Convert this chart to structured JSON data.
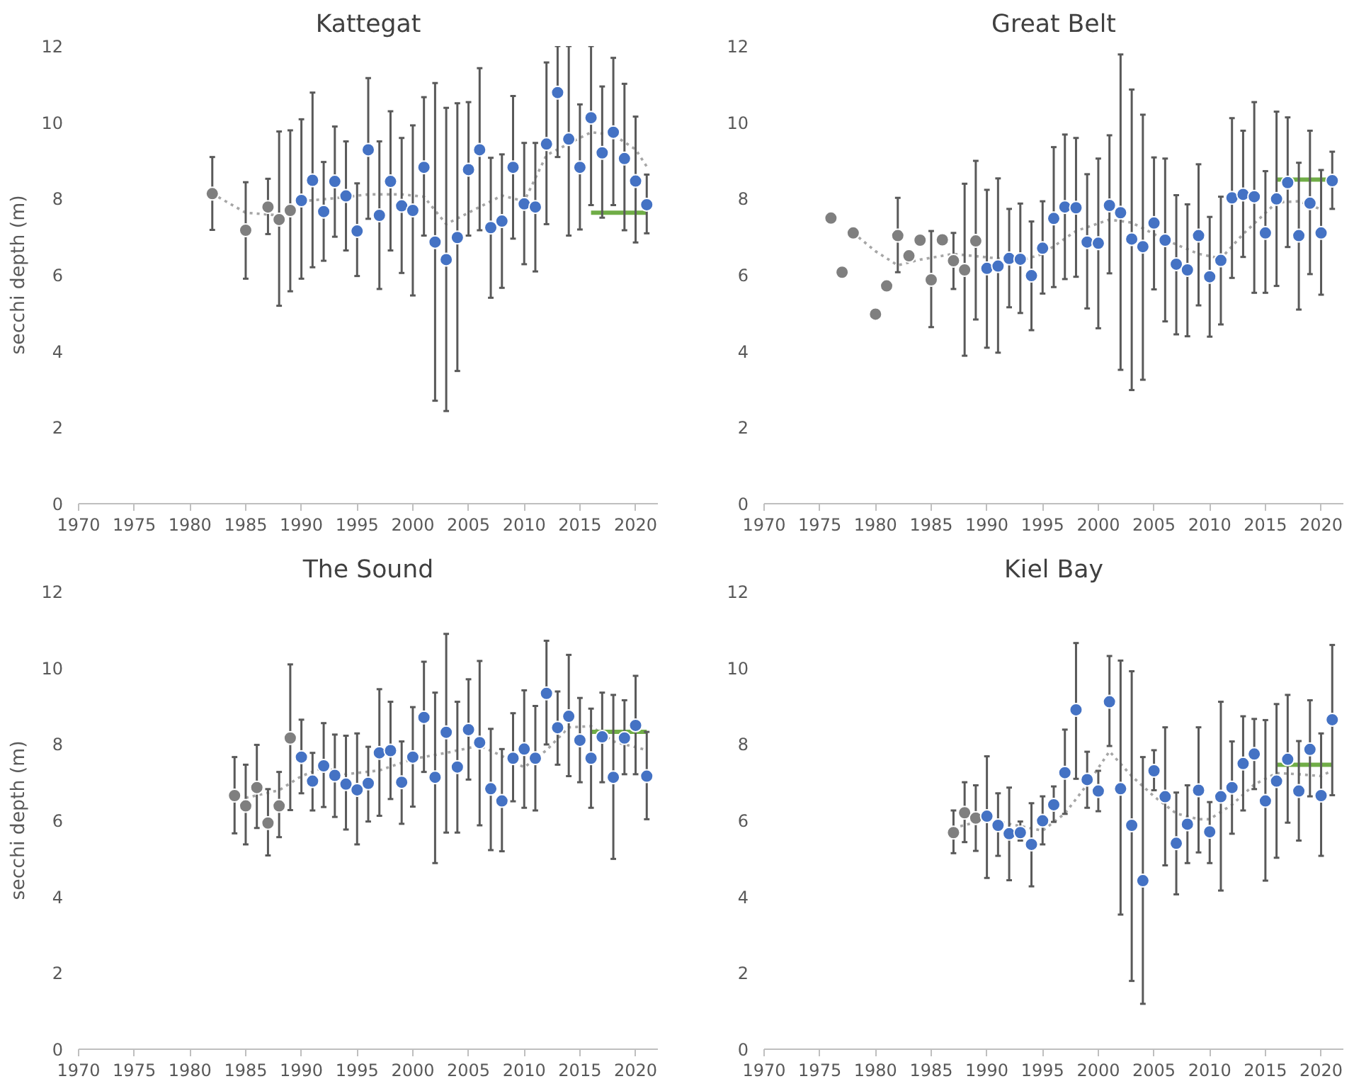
{
  "chart_data": [
    {
      "type": "scatter",
      "title": "Kattegat",
      "ylabel": "secchi depth (m)",
      "xlim": [
        1970,
        2022
      ],
      "xticks": [
        1970,
        1975,
        1980,
        1985,
        1990,
        1995,
        2000,
        2005,
        2010,
        2015,
        2020
      ],
      "ylim": [
        0,
        12
      ],
      "yticks": [
        0,
        2,
        4,
        6,
        8,
        10,
        12
      ],
      "marker": "circle",
      "series": [
        {
          "color": "#7f7f7f",
          "x": [
            1982,
            1985,
            1987,
            1988,
            1989
          ],
          "values": [
            8.13,
            7.17,
            7.78,
            7.45,
            7.69
          ],
          "errors": [
            [
              7.18,
              9.09
            ],
            [
              5.9,
              8.43
            ],
            [
              7.07,
              8.52
            ],
            [
              5.19,
              9.76
            ],
            [
              5.57,
              9.79
            ]
          ]
        },
        {
          "color": "#4472c4",
          "x": [
            1990,
            1991,
            1992,
            1993,
            1994,
            1995,
            1996,
            1997,
            1998,
            1999,
            2000,
            2001,
            2002,
            2003,
            2004,
            2005,
            2006,
            2007,
            2008,
            2009,
            2010,
            2011,
            2012,
            2013,
            2014,
            2015,
            2016,
            2017,
            2018,
            2019,
            2020,
            2021
          ],
          "values": [
            7.95,
            8.48,
            7.66,
            8.45,
            8.07,
            7.15,
            9.28,
            7.56,
            8.45,
            7.81,
            7.69,
            8.82,
            6.86,
            6.4,
            6.98,
            8.76,
            9.28,
            7.24,
            7.41,
            8.82,
            7.86,
            7.78,
            9.43,
            10.78,
            9.56,
            8.82,
            10.12,
            9.2,
            9.74,
            9.05,
            8.46,
            7.84
          ],
          "errors": [
            [
              5.9,
              10.08
            ],
            [
              6.2,
              10.78
            ],
            [
              6.37,
              8.96
            ],
            [
              7.0,
              9.89
            ],
            [
              6.64,
              9.5
            ],
            [
              5.97,
              8.4
            ],
            [
              7.47,
              11.16
            ],
            [
              5.63,
              9.5
            ],
            [
              6.64,
              10.29
            ],
            [
              6.05,
              9.59
            ],
            [
              5.46,
              9.92
            ],
            [
              7.03,
              10.66
            ],
            [
              2.7,
              11.03
            ],
            [
              2.43,
              10.38
            ],
            [
              3.48,
              10.5
            ],
            [
              7.03,
              10.53
            ],
            [
              7.17,
              11.42
            ],
            [
              5.4,
              9.07
            ],
            [
              5.66,
              9.16
            ],
            [
              6.95,
              10.69
            ],
            [
              6.28,
              9.46
            ],
            [
              6.09,
              9.46
            ],
            [
              7.33,
              11.57
            ],
            [
              9.09,
              12
            ],
            [
              7.03,
              12
            ],
            [
              7.19,
              10.47
            ],
            [
              7.83,
              12
            ],
            [
              7.5,
              10.94
            ],
            [
              7.83,
              11.69
            ],
            [
              7.17,
              11.01
            ],
            [
              6.85,
              10.15
            ],
            [
              7.09,
              8.63
            ]
          ]
        },
        {
          "type": "line",
          "color": "#a6a6a6",
          "line_style": "dotted",
          "marker": "none",
          "x": [
            1982,
            1985,
            1988,
            1990,
            1993,
            1996,
            1999,
            2001,
            2003,
            2005,
            2008,
            2010,
            2012,
            2014,
            2016,
            2018,
            2020,
            2021
          ],
          "values": [
            8.13,
            7.63,
            7.56,
            7.93,
            8.01,
            8.11,
            8.11,
            8.05,
            7.33,
            7.63,
            8.08,
            7.93,
            9.14,
            9.44,
            9.74,
            9.67,
            9.29,
            8.84
          ]
        },
        {
          "type": "line",
          "color": "#70ad47",
          "line_style": "solid",
          "marker": "none",
          "x": [
            2016,
            2021
          ],
          "values": [
            7.63,
            7.63
          ]
        }
      ]
    },
    {
      "type": "scatter",
      "title": "Great Belt",
      "xlim": [
        1970,
        2022
      ],
      "xticks": [
        1970,
        1975,
        1980,
        1985,
        1990,
        1995,
        2000,
        2005,
        2010,
        2015,
        2020
      ],
      "ylim": [
        0,
        12
      ],
      "yticks": [
        0,
        2,
        4,
        6,
        8,
        10,
        12
      ],
      "marker": "circle",
      "series": [
        {
          "color": "#7f7f7f",
          "x": [
            1976,
            1977,
            1978,
            1980,
            1981,
            1982,
            1983,
            1984,
            1985,
            1986,
            1987,
            1988,
            1989
          ],
          "values": [
            7.49,
            6.07,
            7.1,
            4.97,
            5.71,
            7.03,
            6.5,
            6.91,
            5.87,
            6.92,
            6.37,
            6.13,
            6.89
          ],
          "errors": [
            null,
            null,
            null,
            null,
            null,
            [
              6.07,
              8.02
            ],
            null,
            null,
            [
              4.63,
              7.15
            ],
            null,
            [
              5.63,
              7.1
            ],
            [
              3.88,
              8.39
            ],
            [
              4.83,
              8.99
            ]
          ]
        },
        {
          "color": "#4472c4",
          "x": [
            1990,
            1991,
            1992,
            1993,
            1994,
            1995,
            1996,
            1997,
            1998,
            1999,
            2000,
            2001,
            2002,
            2003,
            2004,
            2005,
            2006,
            2007,
            2008,
            2009,
            2010,
            2011,
            2012,
            2013,
            2014,
            2015,
            2016,
            2017,
            2018,
            2019,
            2020,
            2021
          ],
          "values": [
            6.17,
            6.23,
            6.43,
            6.41,
            5.98,
            6.7,
            7.48,
            7.78,
            7.76,
            6.86,
            6.83,
            7.82,
            7.63,
            6.94,
            6.74,
            7.36,
            6.91,
            6.28,
            6.13,
            7.03,
            5.95,
            6.38,
            8.02,
            8.11,
            8.05,
            7.1,
            7.99,
            8.42,
            7.03,
            7.88,
            7.1,
            8.47
          ],
          "errors": [
            [
              4.09,
              8.23
            ],
            [
              3.96,
              8.53
            ],
            [
              5.15,
              7.73
            ],
            [
              5.0,
              7.87
            ],
            [
              4.55,
              7.4
            ],
            [
              5.51,
              7.93
            ],
            [
              5.68,
              9.35
            ],
            [
              5.89,
              9.68
            ],
            [
              5.95,
              9.59
            ],
            [
              5.12,
              8.64
            ],
            [
              4.6,
              9.05
            ],
            [
              6.04,
              9.66
            ],
            [
              3.51,
              11.78
            ],
            [
              2.98,
              10.86
            ],
            [
              3.25,
              10.2
            ],
            [
              5.62,
              9.08
            ],
            [
              4.78,
              9.05
            ],
            [
              4.44,
              8.09
            ],
            [
              4.39,
              7.85
            ],
            [
              5.2,
              8.9
            ],
            [
              4.38,
              7.52
            ],
            [
              4.7,
              8.05
            ],
            [
              5.92,
              10.11
            ],
            [
              6.47,
              9.78
            ],
            [
              5.53,
              10.53
            ],
            [
              5.53,
              8.72
            ],
            [
              5.71,
              10.28
            ],
            [
              6.73,
              10.13
            ],
            [
              5.09,
              8.94
            ],
            [
              6.02,
              9.78
            ],
            [
              5.48,
              8.75
            ],
            [
              7.73,
              9.23
            ]
          ]
        },
        {
          "type": "line",
          "color": "#a6a6a6",
          "line_style": "dotted",
          "marker": "none",
          "x": [
            1978,
            1980,
            1982,
            1984,
            1987,
            1990,
            1993,
            1995,
            1998,
            2001,
            2003,
            2006,
            2009,
            2011,
            2013,
            2016,
            2018,
            2020
          ],
          "values": [
            7.1,
            6.62,
            6.25,
            6.4,
            6.55,
            6.46,
            6.37,
            6.55,
            7.15,
            7.45,
            7.37,
            6.92,
            6.55,
            6.43,
            7.07,
            7.9,
            7.93,
            7.72
          ]
        },
        {
          "type": "line",
          "color": "#70ad47",
          "line_style": "solid",
          "marker": "none",
          "x": [
            2016,
            2021
          ],
          "values": [
            8.5,
            8.5
          ]
        }
      ]
    },
    {
      "type": "scatter",
      "title": "The Sound",
      "ylabel": "secchi depth (m)",
      "xlim": [
        1970,
        2022
      ],
      "xticks": [
        1970,
        1975,
        1980,
        1985,
        1990,
        1995,
        2000,
        2005,
        2010,
        2015,
        2020
      ],
      "ylim": [
        0,
        12
      ],
      "yticks": [
        0,
        2,
        4,
        6,
        8,
        10,
        12
      ],
      "marker": "circle",
      "series": [
        {
          "color": "#7f7f7f",
          "x": [
            1984,
            1985,
            1986,
            1987,
            1988,
            1989
          ],
          "values": [
            6.65,
            6.38,
            6.86,
            5.93,
            6.38,
            8.16
          ],
          "errors": [
            [
              5.66,
              7.66
            ],
            [
              5.37,
              7.46
            ],
            [
              5.8,
              7.98
            ],
            [
              5.08,
              6.82
            ],
            [
              5.56,
              7.27
            ],
            [
              6.27,
              10.09
            ]
          ]
        },
        {
          "color": "#4472c4",
          "x": [
            1990,
            1991,
            1992,
            1993,
            1994,
            1995,
            1996,
            1997,
            1998,
            1999,
            2000,
            2001,
            2002,
            2003,
            2004,
            2005,
            2006,
            2007,
            2008,
            2009,
            2010,
            2011,
            2012,
            2013,
            2014,
            2015,
            2016,
            2017,
            2018,
            2019,
            2020,
            2021
          ],
          "values": [
            7.66,
            7.03,
            7.43,
            7.18,
            6.95,
            6.8,
            6.97,
            7.77,
            7.83,
            7.0,
            7.66,
            8.7,
            7.13,
            8.31,
            7.4,
            8.38,
            8.04,
            6.83,
            6.51,
            7.63,
            7.87,
            7.63,
            9.33,
            8.43,
            8.73,
            8.1,
            7.63,
            8.19,
            7.13,
            8.16,
            8.49,
            7.16
          ],
          "errors": [
            [
              6.71,
              8.64
            ],
            [
              6.26,
              7.77
            ],
            [
              6.35,
              8.55
            ],
            [
              6.09,
              8.25
            ],
            [
              5.76,
              8.22
            ],
            [
              5.37,
              8.28
            ],
            [
              5.97,
              7.93
            ],
            [
              6.12,
              9.44
            ],
            [
              6.56,
              9.11
            ],
            [
              5.91,
              8.07
            ],
            [
              6.36,
              8.97
            ],
            [
              7.27,
              10.16
            ],
            [
              4.88,
              9.35
            ],
            [
              5.68,
              10.89
            ],
            [
              5.68,
              9.11
            ],
            [
              7.07,
              9.7
            ],
            [
              5.87,
              10.18
            ],
            [
              5.22,
              8.4
            ],
            [
              5.19,
              7.87
            ],
            [
              6.5,
              8.81
            ],
            [
              6.33,
              9.41
            ],
            [
              6.26,
              9.0
            ],
            [
              7.99,
              10.71
            ],
            [
              7.46,
              9.38
            ],
            [
              7.16,
              10.34
            ],
            [
              7.0,
              9.21
            ],
            [
              6.33,
              8.93
            ],
            [
              7.0,
              9.35
            ],
            [
              4.99,
              9.29
            ],
            [
              7.21,
              9.15
            ],
            [
              7.21,
              9.79
            ],
            [
              6.03,
              8.32
            ]
          ]
        },
        {
          "type": "line",
          "color": "#a6a6a6",
          "line_style": "dotted",
          "marker": "none",
          "x": [
            1985,
            1988,
            1990,
            1992,
            1994,
            1997,
            2000,
            2003,
            2006,
            2008,
            2010,
            2012,
            2014,
            2016,
            2018,
            2020,
            2021
          ],
          "values": [
            6.59,
            6.79,
            7.16,
            7.39,
            7.21,
            7.31,
            7.61,
            7.77,
            7.96,
            7.69,
            7.39,
            7.84,
            8.44,
            8.47,
            8.07,
            7.92,
            7.84
          ]
        },
        {
          "type": "line",
          "color": "#70ad47",
          "line_style": "solid",
          "marker": "none",
          "x": [
            2016,
            2021
          ],
          "values": [
            8.32,
            8.32
          ]
        }
      ]
    },
    {
      "type": "scatter",
      "title": "Kiel Bay",
      "xlim": [
        1970,
        2022
      ],
      "xticks": [
        1970,
        1975,
        1980,
        1985,
        1990,
        1995,
        2000,
        2005,
        2010,
        2015,
        2020
      ],
      "ylim": [
        0,
        12
      ],
      "yticks": [
        0,
        2,
        4,
        6,
        8,
        10,
        12
      ],
      "marker": "circle",
      "series": [
        {
          "color": "#7f7f7f",
          "x": [
            1987,
            1988,
            1989
          ],
          "values": [
            5.68,
            6.2,
            6.06
          ],
          "errors": [
            [
              5.14,
              6.26
            ],
            [
              5.43,
              7.0
            ],
            [
              5.2,
              6.92
            ]
          ]
        },
        {
          "color": "#4472c4",
          "x": [
            1990,
            1991,
            1992,
            1993,
            1994,
            1995,
            1996,
            1997,
            1998,
            1999,
            2000,
            2001,
            2002,
            2003,
            2004,
            2005,
            2006,
            2007,
            2008,
            2009,
            2010,
            2011,
            2012,
            2013,
            2014,
            2015,
            2016,
            2017,
            2018,
            2019,
            2020,
            2021
          ],
          "values": [
            6.11,
            5.87,
            5.65,
            5.68,
            5.37,
            5.99,
            6.41,
            7.25,
            8.9,
            7.07,
            6.77,
            9.11,
            6.83,
            5.87,
            4.42,
            7.3,
            6.62,
            5.4,
            5.9,
            6.79,
            5.7,
            6.62,
            6.86,
            7.49,
            7.74,
            6.51,
            7.03,
            7.6,
            6.77,
            7.86,
            6.65,
            8.64
          ],
          "errors": [
            [
              4.49,
              7.68
            ],
            [
              5.07,
              6.71
            ],
            [
              4.43,
              6.86
            ],
            [
              5.47,
              5.97
            ],
            [
              4.27,
              6.45
            ],
            [
              5.37,
              6.63
            ],
            [
              5.96,
              6.89
            ],
            [
              6.17,
              8.38
            ],
            [
              7.09,
              10.65
            ],
            [
              6.33,
              7.8
            ],
            [
              6.24,
              7.3
            ],
            [
              7.95,
              10.31
            ],
            [
              3.53,
              10.19
            ],
            [
              1.79,
              9.91
            ],
            [
              1.19,
              7.66
            ],
            [
              6.79,
              7.84
            ],
            [
              4.82,
              8.44
            ],
            [
              4.06,
              6.73
            ],
            [
              4.88,
              6.92
            ],
            [
              5.16,
              8.44
            ],
            [
              4.88,
              6.48
            ],
            [
              4.16,
              9.11
            ],
            [
              5.65,
              8.07
            ],
            [
              6.26,
              8.73
            ],
            [
              6.82,
              8.66
            ],
            [
              4.42,
              8.63
            ],
            [
              5.02,
              9.05
            ],
            [
              5.94,
              9.29
            ],
            [
              5.47,
              8.08
            ],
            [
              6.63,
              9.15
            ],
            [
              5.07,
              8.28
            ],
            [
              6.66,
              10.6
            ]
          ]
        },
        {
          "type": "line",
          "color": "#a6a6a6",
          "line_style": "dotted",
          "marker": "none",
          "x": [
            1987,
            1990,
            1993,
            1995,
            1997,
            1999,
            2001,
            2003,
            2005,
            2007,
            2009,
            2010,
            2012,
            2014,
            2016,
            2018,
            2020,
            2021
          ],
          "values": [
            5.8,
            6.03,
            5.85,
            5.73,
            6.18,
            6.94,
            7.81,
            7.16,
            6.63,
            6.18,
            6.03,
            6.03,
            6.41,
            6.94,
            7.24,
            7.21,
            7.16,
            7.31
          ]
        },
        {
          "type": "line",
          "color": "#70ad47",
          "line_style": "solid",
          "marker": "none",
          "x": [
            2016,
            2021
          ],
          "values": [
            7.46,
            7.46
          ]
        }
      ]
    }
  ]
}
